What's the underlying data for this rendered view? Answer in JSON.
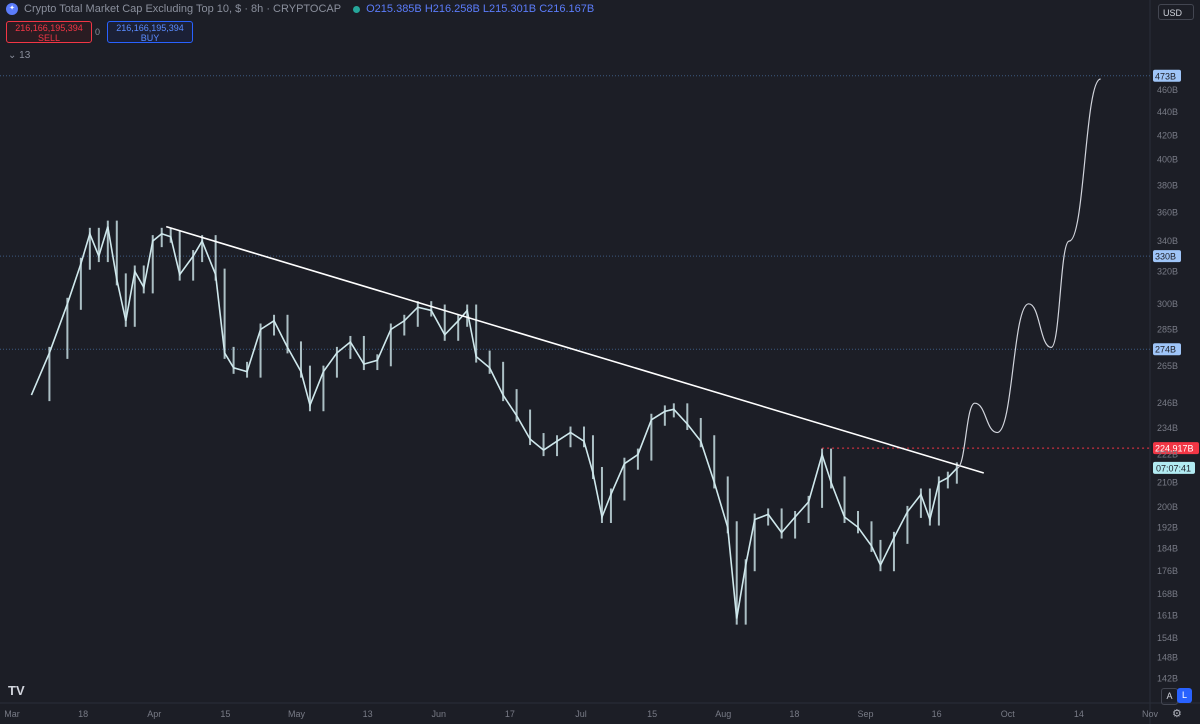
{
  "header": {
    "symbol_icon": "crypto-logo-icon",
    "title": "Crypto Total Market Cap Excluding Top 10, $ · 8h · CRYPTOCAP",
    "ohlc": "O215.385B H216.258B L215.301B C216.167B"
  },
  "trade": {
    "sell_value": "216,166,195,394",
    "sell_label": "SELL",
    "spread": "0",
    "buy_value": "216,166,195,394",
    "buy_label": "BUY"
  },
  "indicators_toggle": "13",
  "currency": "USD",
  "logo": "TV",
  "bottom_buttons": {
    "auto": "A",
    "log": "L"
  },
  "colors": {
    "background": "#1c1e26",
    "candles": "#cfe8ec",
    "trendline": "#ffffff",
    "level_lines": "#3d5a80",
    "red_level": "#f23645",
    "countdown": "#26a69a"
  },
  "chart_data": {
    "type": "line",
    "title": "Crypto Total Market Cap Excluding Top 10, $",
    "scale": "log",
    "ylim": [
      136,
      500
    ],
    "y_ticks": [
      "460B",
      "440B",
      "420B",
      "400B",
      "380B",
      "360B",
      "340B",
      "320B",
      "300B",
      "285B",
      "265B",
      "246B",
      "234B",
      "222B",
      "210B",
      "200B",
      "192B",
      "184B",
      "176B",
      "168B",
      "161B",
      "154B",
      "148B",
      "142B"
    ],
    "x_ticks": [
      "Mar",
      "18",
      "Apr",
      "15",
      "May",
      "13",
      "Jun",
      "17",
      "Jul",
      "15",
      "Aug",
      "18",
      "Sep",
      "16",
      "Oct",
      "14",
      "Nov"
    ],
    "price_labels": [
      {
        "label": "473B",
        "value": 473,
        "style": "blue"
      },
      {
        "label": "330B",
        "value": 330,
        "style": "blue"
      },
      {
        "label": "274B",
        "value": 274,
        "style": "blue"
      },
      {
        "label": "224.917B",
        "value": 224.9,
        "style": "red"
      }
    ],
    "countdown": {
      "label": "07:07:41",
      "value": 216.2
    },
    "series": [
      {
        "values": [
          {
            "x": "2024-03-01",
            "y": 250
          },
          {
            "x": "2024-03-05",
            "y": 272
          },
          {
            "x": "2024-03-09",
            "y": 300
          },
          {
            "x": "2024-03-12",
            "y": 325
          },
          {
            "x": "2024-03-14",
            "y": 345
          },
          {
            "x": "2024-03-16",
            "y": 330
          },
          {
            "x": "2024-03-18",
            "y": 350
          },
          {
            "x": "2024-03-20",
            "y": 315
          },
          {
            "x": "2024-03-22",
            "y": 290
          },
          {
            "x": "2024-03-24",
            "y": 320
          },
          {
            "x": "2024-03-26",
            "y": 310
          },
          {
            "x": "2024-03-28",
            "y": 340
          },
          {
            "x": "2024-03-30",
            "y": 345
          },
          {
            "x": "2024-04-01",
            "y": 343
          },
          {
            "x": "2024-04-03",
            "y": 318
          },
          {
            "x": "2024-04-06",
            "y": 330
          },
          {
            "x": "2024-04-08",
            "y": 340
          },
          {
            "x": "2024-04-11",
            "y": 318
          },
          {
            "x": "2024-04-13",
            "y": 272
          },
          {
            "x": "2024-04-15",
            "y": 264
          },
          {
            "x": "2024-04-18",
            "y": 262
          },
          {
            "x": "2024-04-21",
            "y": 285
          },
          {
            "x": "2024-04-24",
            "y": 290
          },
          {
            "x": "2024-04-27",
            "y": 275
          },
          {
            "x": "2024-04-30",
            "y": 262
          },
          {
            "x": "2024-05-02",
            "y": 245
          },
          {
            "x": "2024-05-05",
            "y": 262
          },
          {
            "x": "2024-05-08",
            "y": 272
          },
          {
            "x": "2024-05-11",
            "y": 278
          },
          {
            "x": "2024-05-14",
            "y": 266
          },
          {
            "x": "2024-05-17",
            "y": 268
          },
          {
            "x": "2024-05-20",
            "y": 285
          },
          {
            "x": "2024-05-23",
            "y": 290
          },
          {
            "x": "2024-05-26",
            "y": 298
          },
          {
            "x": "2024-05-29",
            "y": 296
          },
          {
            "x": "2024-06-01",
            "y": 282
          },
          {
            "x": "2024-06-04",
            "y": 290
          },
          {
            "x": "2024-06-06",
            "y": 296
          },
          {
            "x": "2024-06-08",
            "y": 270
          },
          {
            "x": "2024-06-11",
            "y": 264
          },
          {
            "x": "2024-06-14",
            "y": 250
          },
          {
            "x": "2024-06-17",
            "y": 240
          },
          {
            "x": "2024-06-20",
            "y": 229
          },
          {
            "x": "2024-06-23",
            "y": 224
          },
          {
            "x": "2024-06-26",
            "y": 228
          },
          {
            "x": "2024-06-29",
            "y": 232
          },
          {
            "x": "2024-07-02",
            "y": 228
          },
          {
            "x": "2024-07-04",
            "y": 214
          },
          {
            "x": "2024-07-06",
            "y": 196
          },
          {
            "x": "2024-07-08",
            "y": 205
          },
          {
            "x": "2024-07-11",
            "y": 218
          },
          {
            "x": "2024-07-14",
            "y": 222
          },
          {
            "x": "2024-07-17",
            "y": 238
          },
          {
            "x": "2024-07-20",
            "y": 242
          },
          {
            "x": "2024-07-22",
            "y": 243
          },
          {
            "x": "2024-07-25",
            "y": 236
          },
          {
            "x": "2024-07-28",
            "y": 228
          },
          {
            "x": "2024-07-31",
            "y": 210
          },
          {
            "x": "2024-08-03",
            "y": 192
          },
          {
            "x": "2024-08-05",
            "y": 160
          },
          {
            "x": "2024-08-07",
            "y": 178
          },
          {
            "x": "2024-08-09",
            "y": 195
          },
          {
            "x": "2024-08-12",
            "y": 197
          },
          {
            "x": "2024-08-15",
            "y": 190
          },
          {
            "x": "2024-08-18",
            "y": 196
          },
          {
            "x": "2024-08-21",
            "y": 202
          },
          {
            "x": "2024-08-24",
            "y": 222
          },
          {
            "x": "2024-08-26",
            "y": 210
          },
          {
            "x": "2024-08-29",
            "y": 196
          },
          {
            "x": "2024-09-01",
            "y": 192
          },
          {
            "x": "2024-09-04",
            "y": 185
          },
          {
            "x": "2024-09-06",
            "y": 178
          },
          {
            "x": "2024-09-09",
            "y": 188
          },
          {
            "x": "2024-09-12",
            "y": 198
          },
          {
            "x": "2024-09-15",
            "y": 205
          },
          {
            "x": "2024-09-17",
            "y": 195
          },
          {
            "x": "2024-09-19",
            "y": 210
          },
          {
            "x": "2024-09-21",
            "y": 212
          },
          {
            "x": "2024-09-23",
            "y": 216
          }
        ]
      }
    ],
    "annotations": {
      "trendline": {
        "from": {
          "x": "2024-03-31",
          "y": 350
        },
        "to": {
          "x": "2024-09-29",
          "y": 214
        }
      },
      "resistance": {
        "from": {
          "x": "2024-08-24",
          "y": 224.9
        },
        "to": {
          "x": "2024-11-01",
          "y": 224.9
        }
      },
      "projection": [
        {
          "x": "2024-09-23",
          "y": 216
        },
        {
          "x": "2024-09-27",
          "y": 246
        },
        {
          "x": "2024-10-02",
          "y": 232
        },
        {
          "x": "2024-10-09",
          "y": 300
        },
        {
          "x": "2024-10-14",
          "y": 275
        },
        {
          "x": "2024-10-18",
          "y": 340
        },
        {
          "x": "2024-10-25",
          "y": 470
        }
      ]
    }
  }
}
